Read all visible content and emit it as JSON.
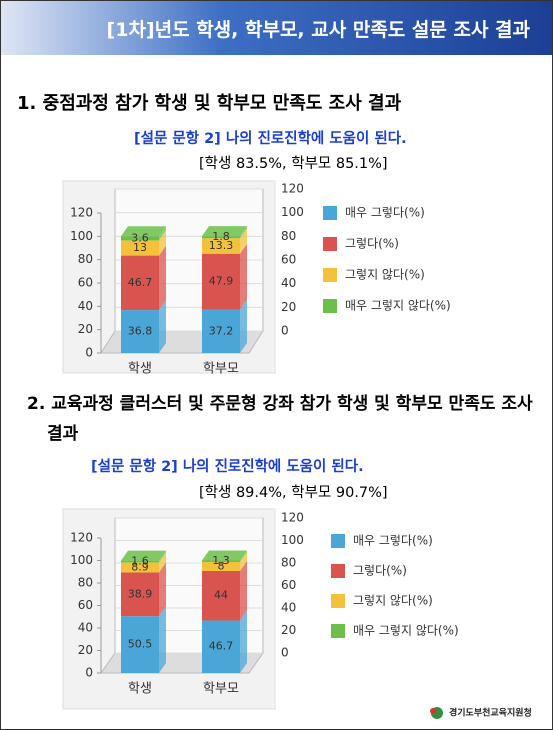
{
  "header": {
    "title": "[1차]년도 학생, 학부모, 교사 만족도 설문 조사 결과"
  },
  "chart_data": [
    {
      "type": "bar",
      "stacked": true,
      "title": "1. 중점과정 참가 학생 및 학부모 만족도 조사 결과",
      "subtitle": "[설문 문항 2] 나의 진로진학에 도움이 된다.",
      "annotation": "[학생 83.5%, 학부모 85.1%]",
      "categories": [
        "학생",
        "학부모"
      ],
      "series": [
        {
          "name": "매우 그렇다(%)",
          "color": "#4ba6d8",
          "values": [
            36.8,
            37.2
          ]
        },
        {
          "name": "그렇다(%)",
          "color": "#d9534f",
          "values": [
            46.7,
            47.9
          ]
        },
        {
          "name": "그렇지 않다(%)",
          "color": "#f3c23a",
          "values": [
            13,
            13.3
          ]
        },
        {
          "name": "매우 그렇지 않다(%)",
          "color": "#6cbf4a",
          "values": [
            3.6,
            1.8
          ]
        }
      ],
      "ylim": [
        0,
        120
      ],
      "yticks": [
        0,
        20,
        40,
        60,
        80,
        100,
        120
      ],
      "y2lim": [
        0,
        120
      ],
      "y2ticks": [
        0,
        20,
        40,
        60,
        80,
        100,
        120
      ],
      "legend": "right"
    },
    {
      "type": "bar",
      "stacked": true,
      "title": "2. 교육과정 클러스터 및 주문형 강좌 참가 학생 및 학부모 만족도 조사 결과",
      "subtitle": "[설문 문항 2] 나의 진로진학에 도움이 된다.",
      "annotation": "[학생 89.4%, 학부모 90.7%]",
      "categories": [
        "학생",
        "학부모"
      ],
      "series": [
        {
          "name": "매우 그렇다(%)",
          "color": "#4ba6d8",
          "values": [
            50.5,
            46.7
          ]
        },
        {
          "name": "그렇다(%)",
          "color": "#d9534f",
          "values": [
            38.9,
            44
          ]
        },
        {
          "name": "그렇지 않다(%)",
          "color": "#f3c23a",
          "values": [
            8.9,
            8
          ]
        },
        {
          "name": "매우 그렇지 않다(%)",
          "color": "#6cbf4a",
          "values": [
            1.6,
            1.3
          ]
        }
      ],
      "ylim": [
        0,
        120
      ],
      "yticks": [
        0,
        20,
        40,
        60,
        80,
        100,
        120
      ],
      "y2lim": [
        0,
        120
      ],
      "y2ticks": [
        0,
        20,
        40,
        60,
        80,
        100,
        120
      ],
      "legend": "right"
    }
  ],
  "footer": {
    "organization": "경기도부천교육지원청"
  }
}
